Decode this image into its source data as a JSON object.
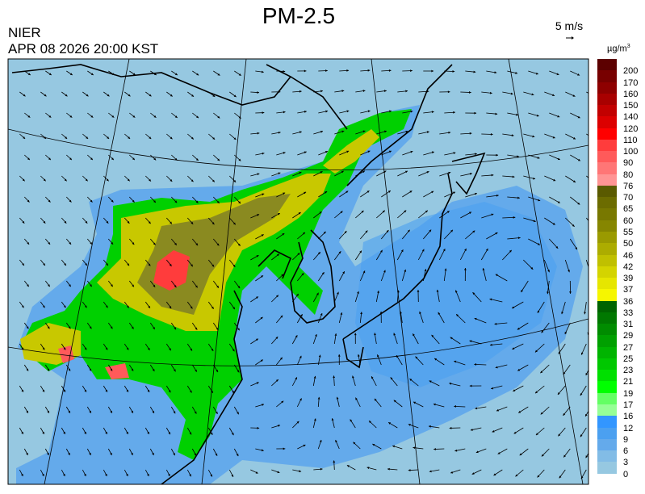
{
  "header": {
    "title": "PM-2.5",
    "organization": "NIER",
    "datetime": "APR 08 2026 20:00 KST",
    "wind_reference": "5 m/s"
  },
  "legend": {
    "unit_base": "µg/m",
    "unit_exp": "3",
    "items": [
      {
        "label": "200",
        "color": "#5c0000"
      },
      {
        "label": "170",
        "color": "#780000"
      },
      {
        "label": "160",
        "color": "#8e0000"
      },
      {
        "label": "150",
        "color": "#a80000"
      },
      {
        "label": "140",
        "color": "#c20000"
      },
      {
        "label": "120",
        "color": "#dc0000"
      },
      {
        "label": "110",
        "color": "#ff0000"
      },
      {
        "label": "100",
        "color": "#ff3c3c"
      },
      {
        "label": "90",
        "color": "#ff5a5a"
      },
      {
        "label": "80",
        "color": "#ff7676"
      },
      {
        "label": "76",
        "color": "#ff9494"
      },
      {
        "label": "70",
        "color": "#5a5a00"
      },
      {
        "label": "65",
        "color": "#6c6c00"
      },
      {
        "label": "60",
        "color": "#787800"
      },
      {
        "label": "55",
        "color": "#868600"
      },
      {
        "label": "50",
        "color": "#9a9a00"
      },
      {
        "label": "46",
        "color": "#acac00"
      },
      {
        "label": "42",
        "color": "#c0c000"
      },
      {
        "label": "39",
        "color": "#d4d400"
      },
      {
        "label": "37",
        "color": "#e6e600"
      },
      {
        "label": "36",
        "color": "#f6f600"
      },
      {
        "label": "33",
        "color": "#006400"
      },
      {
        "label": "31",
        "color": "#007800"
      },
      {
        "label": "29",
        "color": "#008c00"
      },
      {
        "label": "27",
        "color": "#00a000"
      },
      {
        "label": "25",
        "color": "#00b400"
      },
      {
        "label": "23",
        "color": "#00c800"
      },
      {
        "label": "21",
        "color": "#00e000"
      },
      {
        "label": "19",
        "color": "#00ff00"
      },
      {
        "label": "17",
        "color": "#64ff64"
      },
      {
        "label": "16",
        "color": "#96ff96"
      },
      {
        "label": "12",
        "color": "#3296ff"
      },
      {
        "label": "9",
        "color": "#4ba0f0"
      },
      {
        "label": "6",
        "color": "#64aaeb"
      },
      {
        "label": "3",
        "color": "#82bce6"
      },
      {
        "label": "0",
        "color": "#96c8e1"
      }
    ]
  },
  "map": {
    "background_color": "#96c8e1",
    "colors": {
      "blue": "#64aaeb",
      "green": "#00d000",
      "light_green": "#00ff00",
      "yellow": "#c8c800",
      "olive": "#8a8a20",
      "red": "#ff3c3c"
    }
  }
}
